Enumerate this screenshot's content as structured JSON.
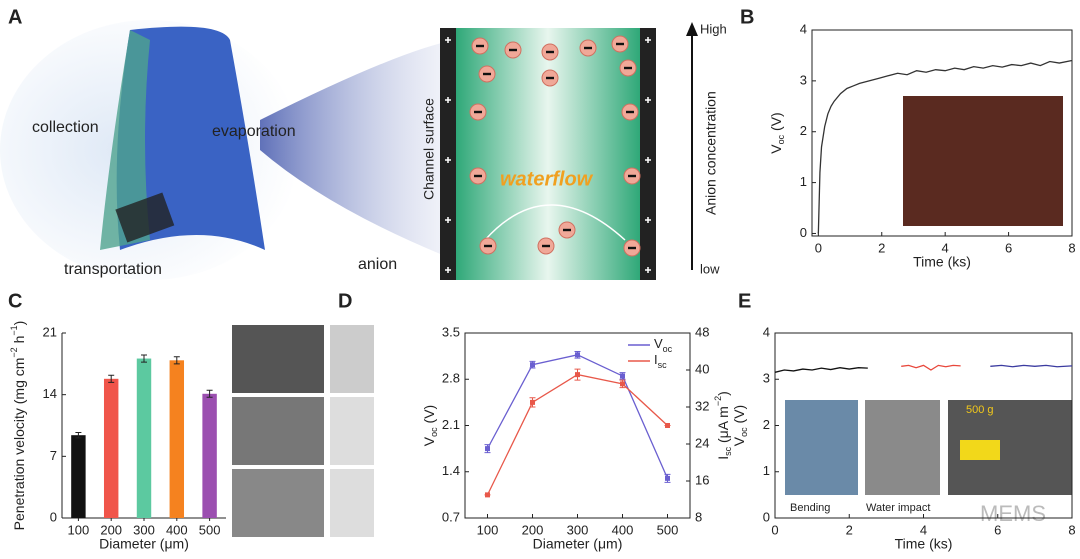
{
  "panel_a": {
    "panel": "A",
    "labels": [
      "collection",
      "evaporation",
      "transportation",
      "anion",
      "waterflow",
      "Channel surface",
      "Anion concentration",
      "High",
      "low"
    ]
  },
  "watermark": "MEMS",
  "chart_data": [
    {
      "type": "line",
      "panel": "B",
      "frame": "box",
      "y_label": [
        "V",
        {
          "text": "oc",
          "shift": "sub"
        },
        " (V)"
      ],
      "x_label": "Time (ks)",
      "xlim": [
        -0.2,
        8
      ],
      "xticks": [
        0,
        2,
        4,
        6,
        8
      ],
      "ylim": [
        -0.05,
        4
      ],
      "yticks": [
        0,
        1,
        2,
        3,
        4
      ],
      "x": [
        0,
        0.05,
        0.1,
        0.2,
        0.3,
        0.4,
        0.5,
        0.7,
        0.9,
        1.1,
        1.3,
        1.6,
        1.9,
        2.2,
        2.5,
        2.8,
        3.1,
        3.4,
        3.7,
        4.0,
        4.3,
        4.6,
        4.9,
        5.2,
        5.5,
        5.8,
        6.1,
        6.4,
        6.7,
        7.0,
        7.3,
        7.6,
        8.0
      ],
      "series": [
        {
          "color": "#333333",
          "values": [
            0,
            1.2,
            1.7,
            2.1,
            2.35,
            2.5,
            2.6,
            2.75,
            2.85,
            2.9,
            2.95,
            3.0,
            3.05,
            3.1,
            3.15,
            3.12,
            3.2,
            3.17,
            3.22,
            3.2,
            3.25,
            3.22,
            3.28,
            3.25,
            3.3,
            3.27,
            3.32,
            3.3,
            3.35,
            3.3,
            3.38,
            3.35,
            3.4
          ]
        }
      ]
    },
    {
      "type": "bar",
      "panel": "C",
      "frame": "axes",
      "y_label": [
        "Penetration velocity (mg cm",
        {
          "text": "−2",
          "shift": "super"
        },
        " h",
        {
          "text": "−1",
          "shift": "super"
        },
        ")"
      ],
      "x_label": "Diameter (μm)",
      "categories": [
        "100",
        "200",
        "300",
        "400",
        "500"
      ],
      "values": [
        9.4,
        15.8,
        18.1,
        17.9,
        14.1
      ],
      "errors": [
        0.3,
        0.4,
        0.4,
        0.4,
        0.4
      ],
      "colors": [
        "#111111",
        "#f0554a",
        "#5cc9a0",
        "#f5821f",
        "#9b4fb0"
      ],
      "ylim": [
        0,
        21
      ],
      "yticks": [
        0,
        7,
        14,
        21
      ]
    },
    {
      "type": "line",
      "panel": "D",
      "frame": "box",
      "markers": true,
      "y_label": [
        "V",
        {
          "text": "oc",
          "shift": "sub"
        },
        " (V)"
      ],
      "y2_label": [
        "I",
        {
          "text": "sc",
          "shift": "sub"
        },
        " (μA m",
        {
          "text": "−2",
          "shift": "super"
        },
        ")"
      ],
      "x_label": "Diameter (μm)",
      "xlim": [
        50,
        550
      ],
      "xticks": [
        100,
        200,
        300,
        400,
        500
      ],
      "ylim": [
        0.7,
        3.5
      ],
      "yticks": [
        0.7,
        1.4,
        2.1,
        2.8,
        3.5
      ],
      "y2lim": [
        8,
        48
      ],
      "y2ticks": [
        8,
        16,
        24,
        32,
        40,
        48
      ],
      "x": [
        100,
        200,
        300,
        400,
        500
      ],
      "legend": "top-right",
      "series": [
        {
          "name": [
            "V",
            {
              "text": "oc",
              "shift": "sub"
            }
          ],
          "color": "#6a5fd0",
          "values": [
            1.75,
            3.02,
            3.17,
            2.85,
            1.3
          ],
          "errors": [
            0.06,
            0.05,
            0.05,
            0.05,
            0.06
          ]
        },
        {
          "name": [
            "I",
            {
              "text": "sc",
              "shift": "sub"
            }
          ],
          "color": "#e8584a",
          "axis": "y2",
          "values": [
            13,
            33,
            39,
            37,
            28
          ],
          "errors": [
            0,
            1,
            1.2,
            0.8,
            0
          ]
        }
      ]
    },
    {
      "type": "line",
      "panel": "E",
      "frame": "box",
      "y_label": [
        "V",
        {
          "text": "oc",
          "shift": "sub"
        },
        " (V)"
      ],
      "x_label": "Time (ks)",
      "xlim": [
        0,
        8
      ],
      "xticks": [
        0,
        2,
        4,
        6,
        8
      ],
      "ylim": [
        0,
        4
      ],
      "yticks": [
        0,
        1,
        2,
        3,
        4
      ],
      "insets": [
        "Bending",
        "Water impact",
        "500 g"
      ],
      "series": [
        {
          "color": "#111111",
          "x": [
            0,
            0.25,
            0.5,
            0.75,
            1,
            1.25,
            1.5,
            1.75,
            2,
            2.25,
            2.5
          ],
          "values": [
            3.15,
            3.2,
            3.18,
            3.22,
            3.2,
            3.24,
            3.21,
            3.25,
            3.22,
            3.25,
            3.24
          ]
        },
        {
          "color": "#e8473b",
          "x": [
            3.4,
            3.6,
            3.8,
            4.0,
            4.2,
            4.4,
            4.6,
            4.8,
            5.0
          ],
          "values": [
            3.28,
            3.3,
            3.25,
            3.3,
            3.2,
            3.3,
            3.27,
            3.3,
            3.29
          ]
        },
        {
          "color": "#3b3ba0",
          "x": [
            5.8,
            6.1,
            6.4,
            6.7,
            7.0,
            7.3,
            7.6,
            8.0
          ],
          "values": [
            3.28,
            3.3,
            3.27,
            3.3,
            3.28,
            3.3,
            3.27,
            3.29
          ]
        }
      ]
    }
  ]
}
